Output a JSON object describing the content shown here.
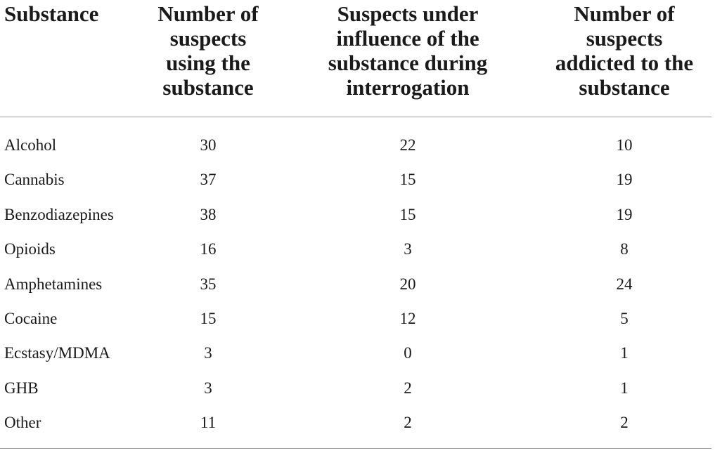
{
  "table": {
    "headers": [
      [
        "Substance"
      ],
      [
        "Number of",
        "suspects",
        "using the",
        "substance"
      ],
      [
        "Suspects under",
        "influence of the",
        "substance during",
        "interrogation"
      ],
      [
        "Number of",
        "suspects",
        "addicted to the",
        "substance"
      ]
    ],
    "rows": [
      [
        "Alcohol",
        "30",
        "22",
        "10"
      ],
      [
        "Cannabis",
        "37",
        "15",
        "19"
      ],
      [
        "Benzodiazepines",
        "38",
        "15",
        "19"
      ],
      [
        "Opioids",
        "16",
        "3",
        "8"
      ],
      [
        "Amphetamines",
        "35",
        "20",
        "24"
      ],
      [
        "Cocaine",
        "15",
        "12",
        "5"
      ],
      [
        "Ecstasy/MDMA",
        "3",
        "0",
        "1"
      ],
      [
        "GHB",
        "3",
        "2",
        "1"
      ],
      [
        "Other",
        "11",
        "2",
        "2"
      ]
    ]
  }
}
